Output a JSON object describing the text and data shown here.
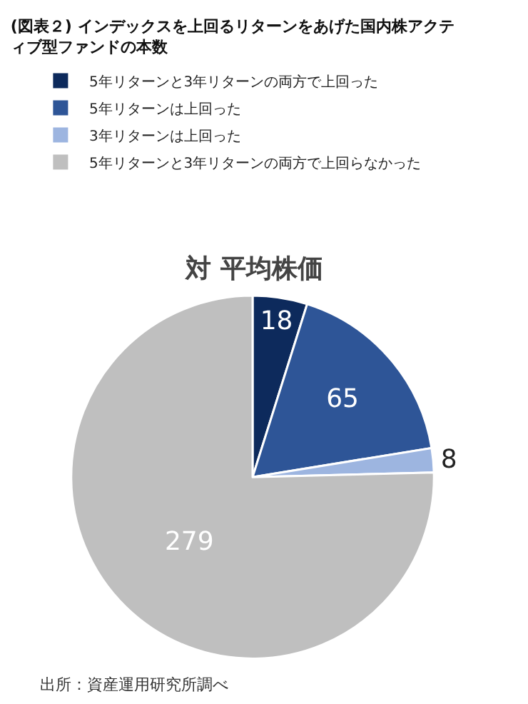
{
  "chart_data": {
    "type": "pie",
    "title": "(図表２) インデックスを上回るリターンをあげた国内株アクティブ型ファンドの本数",
    "subtitle": "対 平均株価",
    "categories": [
      "5年リターンと3年リターンの両方で上回った",
      "5年リターンは上回った",
      "3年リターンは上回った",
      "5年リターンと3年リターンの両方で上回らなかった"
    ],
    "values": [
      18,
      65,
      8,
      279
    ],
    "colors": [
      "#0d2a5c",
      "#2e5597",
      "#9db5e0",
      "#bfbfbf"
    ],
    "data_labels": true,
    "legend": "top",
    "annotations": [
      "出所：資産運用研究所調べ"
    ]
  }
}
